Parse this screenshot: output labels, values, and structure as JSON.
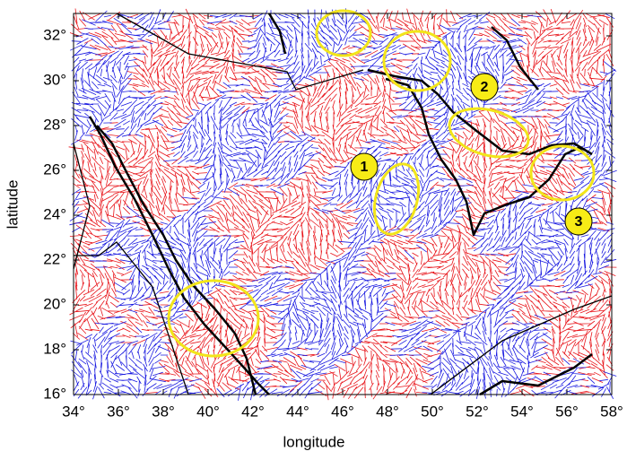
{
  "chart_data": {
    "type": "map",
    "x_label": "longitude",
    "y_label": "latitude",
    "xlim": [
      34,
      58
    ],
    "ylim": [
      16,
      33
    ],
    "xticks": [
      {
        "value": 34,
        "label": "34°"
      },
      {
        "value": 36,
        "label": "36°"
      },
      {
        "value": 38,
        "label": "38°"
      },
      {
        "value": 40,
        "label": "40°"
      },
      {
        "value": 42,
        "label": "42°"
      },
      {
        "value": 44,
        "label": "44°"
      },
      {
        "value": 46,
        "label": "46°"
      },
      {
        "value": 48,
        "label": "48°"
      },
      {
        "value": 50,
        "label": "50°"
      },
      {
        "value": 52,
        "label": "52°"
      },
      {
        "value": 54,
        "label": "54°"
      },
      {
        "value": 56,
        "label": "56°"
      },
      {
        "value": 58,
        "label": "58°"
      }
    ],
    "yticks": [
      {
        "value": 16,
        "label": "16°"
      },
      {
        "value": 18,
        "label": "18°"
      },
      {
        "value": 20,
        "label": "20°"
      },
      {
        "value": 22,
        "label": "22°"
      },
      {
        "value": 24,
        "label": "24°"
      },
      {
        "value": 26,
        "label": "26°"
      },
      {
        "value": 28,
        "label": "28°"
      },
      {
        "value": 30,
        "label": "30°"
      },
      {
        "value": 32,
        "label": "32°"
      }
    ],
    "annotations": [
      "1",
      "2",
      "3"
    ],
    "colors": [
      "#e8141a",
      "#1a1ae0"
    ]
  }
}
